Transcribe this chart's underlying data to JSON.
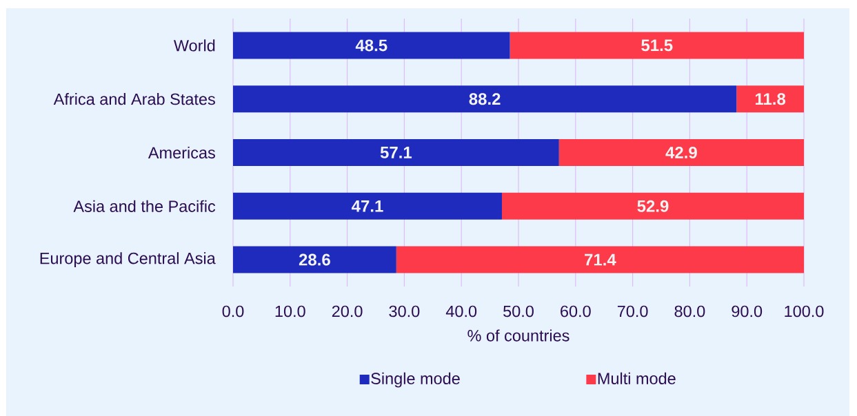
{
  "chart_data": {
    "type": "bar",
    "orientation": "horizontal",
    "stacked": true,
    "categories": [
      "World",
      "Africa and Arab States",
      "Americas",
      "Asia and the Pacific",
      "Europe and Central Asia"
    ],
    "series": [
      {
        "name": "Single mode",
        "color": "#1f2bbd",
        "values": [
          48.5,
          88.2,
          57.1,
          47.1,
          28.6
        ]
      },
      {
        "name": "Multi mode",
        "color": "#fc3a4a",
        "values": [
          51.5,
          11.8,
          42.9,
          52.9,
          71.4
        ]
      }
    ],
    "xlabel": "% of countries",
    "xlim": [
      0,
      100
    ],
    "xticks": [
      {
        "value": 0,
        "label": "0.0"
      },
      {
        "value": 10,
        "label": "10.0"
      },
      {
        "value": 20,
        "label": "20.0"
      },
      {
        "value": 30,
        "label": "30.0"
      },
      {
        "value": 40,
        "label": "40.0"
      },
      {
        "value": 50,
        "label": "50.0"
      },
      {
        "value": 60,
        "label": "60.0"
      },
      {
        "value": 70,
        "label": "70.0"
      },
      {
        "value": 80,
        "label": "80.0"
      },
      {
        "value": 90,
        "label": "90.0"
      },
      {
        "value": 100,
        "label": "100.0"
      }
    ],
    "grid": "x",
    "legend": "bottom",
    "data_labels": true
  }
}
